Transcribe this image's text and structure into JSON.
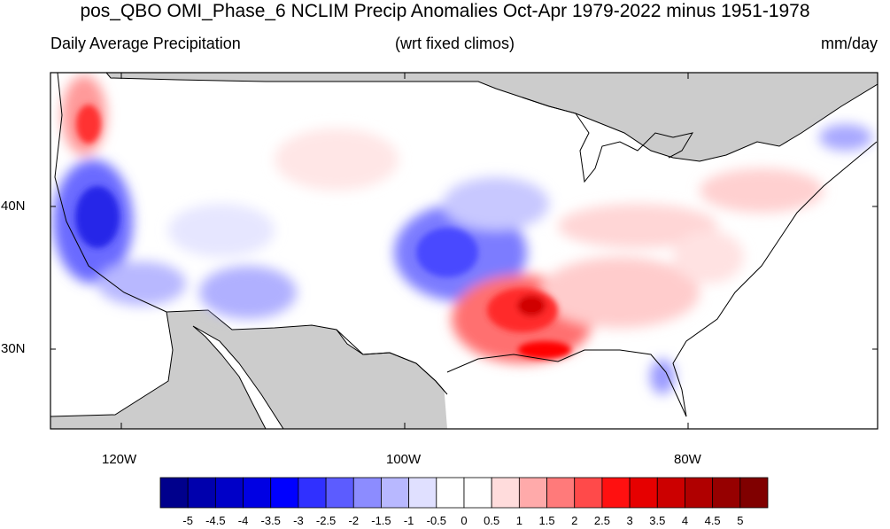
{
  "title": "pos_QBO OMI_Phase_6 NCLIM Precip Anomalies Oct-Apr 1979-2022 minus 1951-1978",
  "subtitle_left": "Daily Average Precipitation",
  "subtitle_center": "(wrt fixed climos)",
  "subtitle_right": "mm/day",
  "axes": {
    "lat_labels": [
      "40N",
      "30N"
    ],
    "lon_labels": [
      "120W",
      "100W",
      "80W"
    ]
  },
  "colors": {
    "land_masked": "#cccccc",
    "coast": "#000000"
  },
  "colorbar": {
    "labels": [
      "-5",
      "-4.5",
      "-4",
      "-3.5",
      "-3",
      "-2.5",
      "-2",
      "-1.5",
      "-1",
      "-0.5",
      "0",
      "0.5",
      "1",
      "1.5",
      "2",
      "2.5",
      "3",
      "3.5",
      "4",
      "4.5",
      "5"
    ],
    "colors": [
      "#00008c",
      "#0000ad",
      "#0000c8",
      "#0000e3",
      "#0000ff",
      "#3030ff",
      "#5c5cff",
      "#8c8cff",
      "#b8b8ff",
      "#e0e0ff",
      "#ffffff",
      "#ffffff",
      "#ffdcdc",
      "#ffaaaa",
      "#ff7a7a",
      "#ff4a4a",
      "#ff1010",
      "#e60000",
      "#cc0000",
      "#b00000",
      "#960000",
      "#800000"
    ]
  }
}
